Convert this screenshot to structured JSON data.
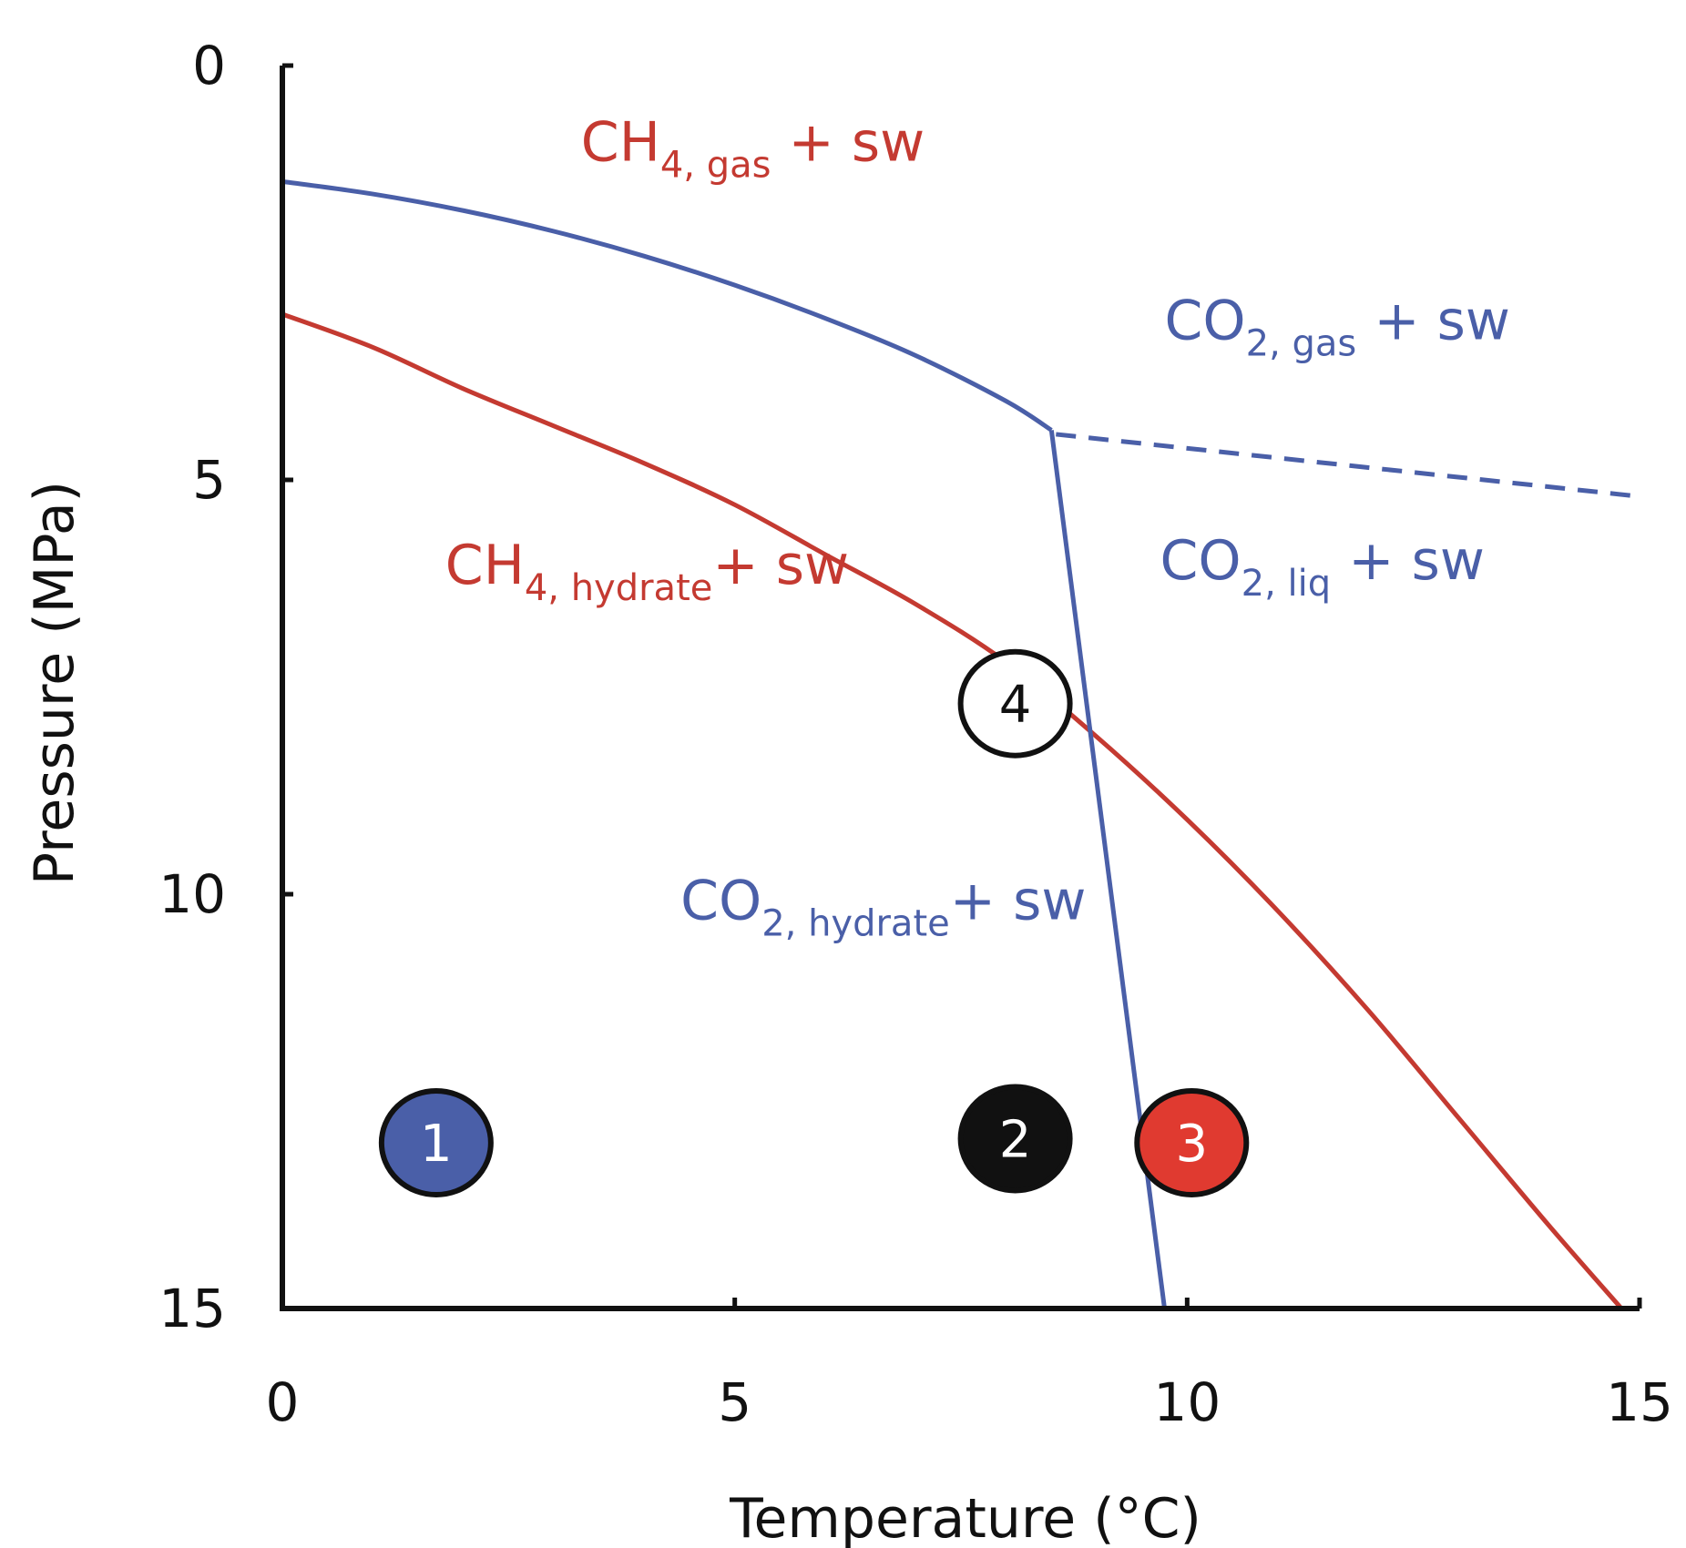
{
  "chart_data": {
    "type": "line",
    "xlabel": "Temperature (°C)",
    "ylabel": "Pressure (MPa)",
    "xlim": [
      0,
      15
    ],
    "ylim": [
      0,
      15
    ],
    "y_inverted": true,
    "x_ticks": [
      "0",
      "5",
      "10",
      "15"
    ],
    "y_ticks": [
      "0",
      "5",
      "10",
      "15"
    ],
    "grid": false,
    "colors": {
      "ch4": "#c43a31",
      "co2": "#4a5fa8",
      "axis": "#111111"
    },
    "series": [
      {
        "color": "#c43a31",
        "style": "solid",
        "points": [
          [
            0,
            3.0
          ],
          [
            1,
            3.4
          ],
          [
            2,
            3.9
          ],
          [
            3,
            4.35
          ],
          [
            4,
            4.8
          ],
          [
            5,
            5.3
          ],
          [
            6,
            5.9
          ],
          [
            7,
            6.5
          ],
          [
            8,
            7.2
          ],
          [
            9,
            8.1
          ],
          [
            10,
            9.1
          ],
          [
            11,
            10.2
          ],
          [
            12,
            11.4
          ],
          [
            13,
            12.7
          ],
          [
            14,
            14.0
          ],
          [
            14.8,
            15.0
          ]
        ]
      },
      {
        "color": "#4a5fa8",
        "style": "solid",
        "points": [
          [
            0,
            1.4
          ],
          [
            1,
            1.55
          ],
          [
            2,
            1.75
          ],
          [
            3,
            2.0
          ],
          [
            4,
            2.3
          ],
          [
            5,
            2.65
          ],
          [
            6,
            3.05
          ],
          [
            7,
            3.5
          ],
          [
            8,
            4.05
          ],
          [
            8.5,
            4.4
          ]
        ]
      },
      {
        "color": "#4a5fa8",
        "style": "solid",
        "points": [
          [
            8.5,
            4.4
          ],
          [
            9.75,
            15.0
          ]
        ]
      },
      {
        "color": "#4a5fa8",
        "style": "dashed",
        "points": [
          [
            8.55,
            4.45
          ],
          [
            15,
            5.2
          ]
        ]
      }
    ],
    "region_labels": [
      {
        "base": "CH",
        "sub": "4, gas",
        "rest": " + sw",
        "x": 3.3,
        "y": 1.15,
        "color": "#c43a31"
      },
      {
        "base": "CO",
        "sub": "2, gas",
        "rest": " + sw",
        "x": 9.75,
        "y": 3.3,
        "color": "#4a5fa8"
      },
      {
        "base": "CH",
        "sub": "4, hydrate",
        "rest": "+ sw",
        "x": 1.8,
        "y": 6.25,
        "color": "#c43a31"
      },
      {
        "base": "CO",
        "sub": "2, liq",
        "rest": "  + sw",
        "x": 9.7,
        "y": 6.2,
        "color": "#4a5fa8"
      },
      {
        "base": "CO",
        "sub": "2, hydrate",
        "rest": "+ sw",
        "x": 4.4,
        "y": 10.3,
        "color": "#4a5fa8"
      }
    ],
    "markers": [
      {
        "label": "1",
        "x": 1.7,
        "y": 13.0,
        "fill": "#4a5fa8",
        "text_color": "#ffffff"
      },
      {
        "label": "2",
        "x": 8.1,
        "y": 12.95,
        "fill": "#111111",
        "text_color": "#ffffff"
      },
      {
        "label": "3",
        "x": 10.05,
        "y": 13.0,
        "fill": "#e03a30",
        "text_color": "#ffffff"
      },
      {
        "label": "4",
        "x": 8.1,
        "y": 7.7,
        "fill": "#ffffff",
        "text_color": "#111111"
      }
    ]
  }
}
